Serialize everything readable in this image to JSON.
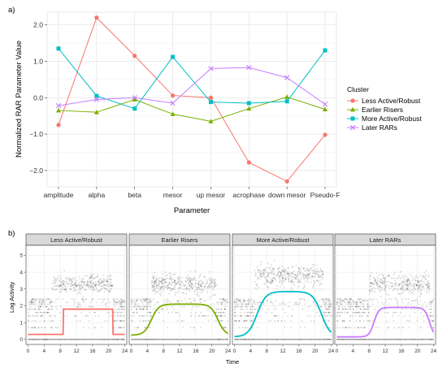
{
  "chart_data": [
    {
      "type": "line",
      "panel_label": "a)",
      "xlabel": "Parameter",
      "ylabel": "Normalized RAR Parameter Value",
      "categories": [
        "amplitude",
        "alpha",
        "beta",
        "mesor",
        "up mesor",
        "acrophase",
        "down mesor",
        "Pseudo-F"
      ],
      "ylim": [
        -2.45,
        2.35
      ],
      "yticks": [
        2.0,
        1.0,
        0.0,
        -1.0,
        -2.0
      ],
      "ytick_labels": [
        "2.0",
        "1.0",
        "0.0",
        "−1.0",
        "−2.0"
      ],
      "grid": true,
      "legend_title": "Cluster",
      "legend_position": "right",
      "series": [
        {
          "name": "Less Active/Robust",
          "color": "#F8766D",
          "marker": "circle",
          "values": [
            -0.75,
            2.2,
            1.15,
            0.06,
            0.0,
            -1.78,
            -2.3,
            -1.02
          ]
        },
        {
          "name": "Earlier Risers",
          "color": "#7CAE00",
          "marker": "triangle",
          "values": [
            -0.35,
            -0.4,
            -0.05,
            -0.45,
            -0.65,
            -0.3,
            0.02,
            -0.32
          ]
        },
        {
          "name": "More Active/Robust",
          "color": "#00BFC4",
          "marker": "square",
          "values": [
            1.35,
            0.05,
            -0.3,
            1.12,
            -0.12,
            -0.15,
            -0.1,
            1.3
          ]
        },
        {
          "name": "Later RARs",
          "color": "#C77CFF",
          "marker": "cross",
          "values": [
            -0.22,
            -0.05,
            0.0,
            -0.15,
            0.8,
            0.83,
            0.55,
            -0.18
          ]
        }
      ]
    },
    {
      "type": "scatter",
      "panel_label": "b)",
      "xlabel": "Time",
      "ylabel": "Log Activity",
      "xlim": [
        -0.5,
        24.5
      ],
      "ylim": [
        -0.3,
        5.6
      ],
      "xticks": [
        0,
        4,
        8,
        12,
        16,
        20,
        24
      ],
      "yticks": [
        0,
        1,
        2,
        3,
        4,
        5
      ],
      "grid": true,
      "facets": [
        {
          "title": "Less Active/Robust",
          "color": "#F8766D",
          "curve": {
            "min": 0.3,
            "max": 1.8,
            "up_mid": 8.8,
            "down_mid": 21.0,
            "rise": 0.05
          },
          "cloud": {
            "center": 3.3,
            "spread": 0.45,
            "t0": 6,
            "t1": 21
          }
        },
        {
          "title": "Earlier Risers",
          "color": "#7CAE00",
          "curve": {
            "min": 0.25,
            "max": 2.1,
            "up_mid": 5.0,
            "down_mid": 21.5,
            "rise": 0.9
          },
          "cloud": {
            "center": 3.3,
            "spread": 0.5,
            "t0": 5,
            "t1": 21
          }
        },
        {
          "title": "More Active/Robust",
          "color": "#00BFC4",
          "curve": {
            "min": 0.15,
            "max": 2.85,
            "up_mid": 5.6,
            "down_mid": 21.6,
            "rise": 1.1
          },
          "cloud": {
            "center": 3.8,
            "spread": 0.55,
            "t0": 5,
            "t1": 22
          }
        },
        {
          "title": "Later RARs",
          "color": "#C77CFF",
          "curve": {
            "min": 0.15,
            "max": 1.9,
            "up_mid": 9.2,
            "down_mid": 23.0,
            "rise": 0.6
          },
          "cloud": {
            "center": 3.3,
            "spread": 0.5,
            "t0": 8,
            "t1": 23
          }
        }
      ]
    }
  ]
}
